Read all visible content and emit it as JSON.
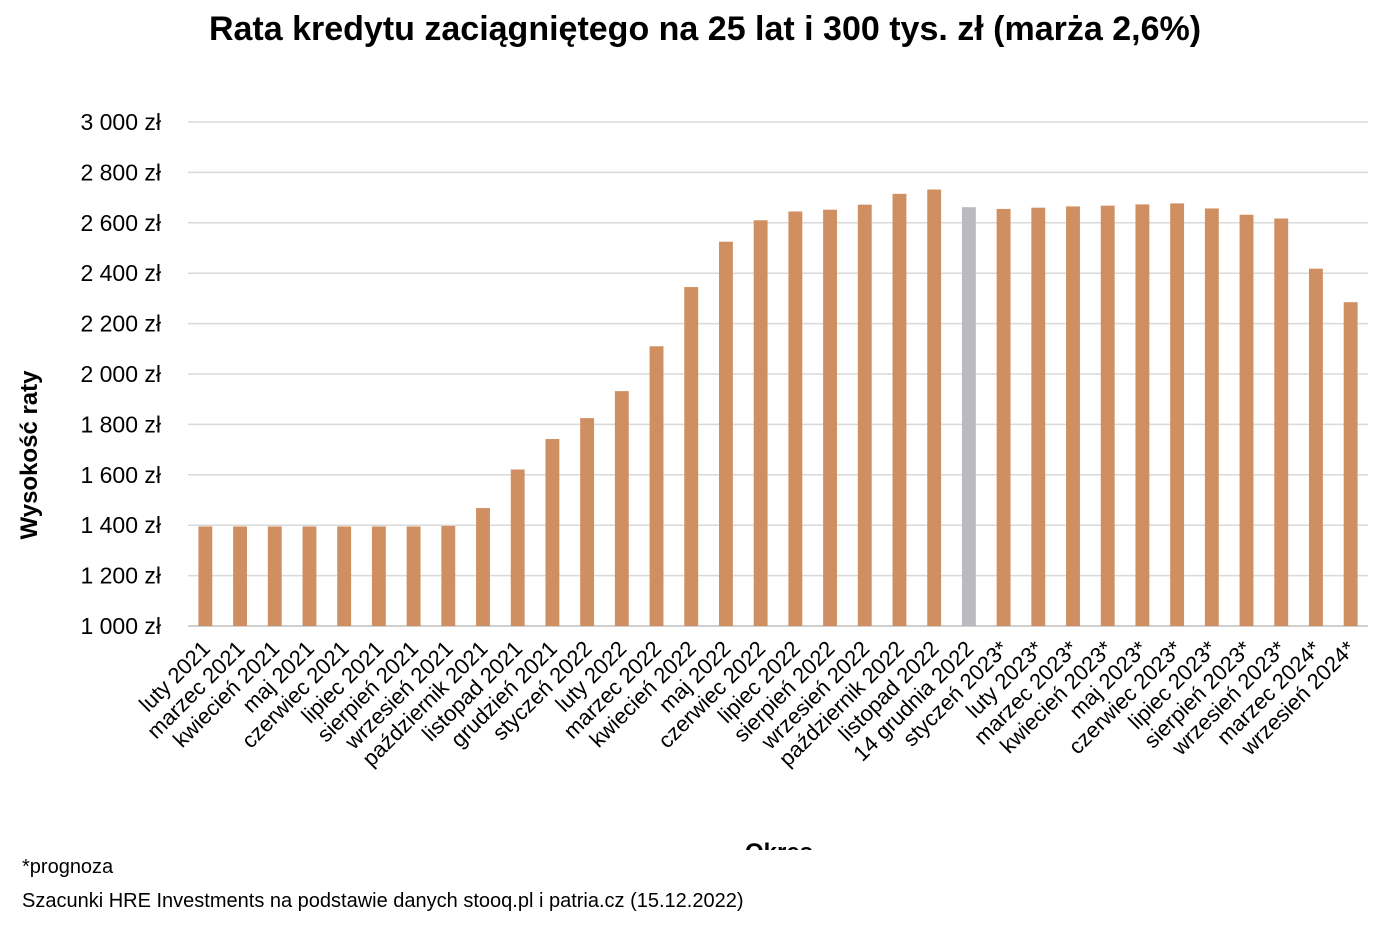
{
  "chart_data": {
    "type": "bar",
    "title": "Rata kredytu zaciągniętego na 25 lat i 300 tys. zł (marża 2,6%)",
    "xlabel": "Okres",
    "ylabel": "Wysokość raty",
    "ylim": [
      1000,
      3000
    ],
    "yticks": [
      1000,
      1200,
      1400,
      1600,
      1800,
      2000,
      2200,
      2400,
      2600,
      2800,
      3000
    ],
    "ytick_labels": [
      "1 000 zł",
      "1 200 zł",
      "1 400 zł",
      "1 600 zł",
      "1 800 zł",
      "2 000 zł",
      "2 200 zł",
      "2 400 zł",
      "2 600 zł",
      "2 800 zł",
      "3 000 zł"
    ],
    "grid": true,
    "legend": "none",
    "categories": [
      "luty 2021",
      "marzec 2021",
      "kwiecień 2021",
      "maj 2021",
      "czerwiec 2021",
      "lipiec 2021",
      "sierpień 2021",
      "wrzesień 2021",
      "październik 2021",
      "listopad 2021",
      "grudzień 2021",
      "styczeń 2022",
      "luty 2022",
      "marzec 2022",
      "kwiecień 2022",
      "maj 2022",
      "czerwiec 2022",
      "lipiec 2022",
      "sierpień 2022",
      "wrzesień 2022",
      "październik 2022",
      "listopad 2022",
      "14 grudnia 2022",
      "styczeń 2023*",
      "luty 2023*",
      "marzec 2023*",
      "kwiecień 2023*",
      "maj 2023*",
      "czerwiec 2023*",
      "lipiec 2023*",
      "sierpień 2023*",
      "wrzesień 2023*",
      "marzec 2024*",
      "wrzesień 2024*"
    ],
    "values": [
      1395,
      1395,
      1395,
      1395,
      1395,
      1395,
      1395,
      1397,
      1468,
      1621,
      1742,
      1825,
      1932,
      2110,
      2345,
      2525,
      2610,
      2645,
      2652,
      2672,
      2715,
      2732,
      2662,
      2655,
      2660,
      2665,
      2668,
      2673,
      2677,
      2657,
      2632,
      2617,
      2418,
      2285
    ],
    "bar_colors": [
      "#D08F60",
      "#D08F60",
      "#D08F60",
      "#D08F60",
      "#D08F60",
      "#D08F60",
      "#D08F60",
      "#D08F60",
      "#D08F60",
      "#D08F60",
      "#D08F60",
      "#D08F60",
      "#D08F60",
      "#D08F60",
      "#D08F60",
      "#D08F60",
      "#D08F60",
      "#D08F60",
      "#D08F60",
      "#D08F60",
      "#D08F60",
      "#D08F60",
      "#BBBAC1",
      "#D08F60",
      "#D08F60",
      "#D08F60",
      "#D08F60",
      "#D08F60",
      "#D08F60",
      "#D08F60",
      "#D08F60",
      "#D08F60",
      "#D08F60",
      "#D08F60"
    ]
  },
  "notes": {
    "footnote": "*prognoza",
    "source": "Szacunki HRE Investments na podstawie danych stooq.pl i patria.cz (15.12.2022)"
  },
  "colors": {
    "bar": "#D08F60",
    "highlight_bar": "#BBBAC1",
    "grid": "#D9D9D9",
    "axis": "#BFBFBF"
  }
}
